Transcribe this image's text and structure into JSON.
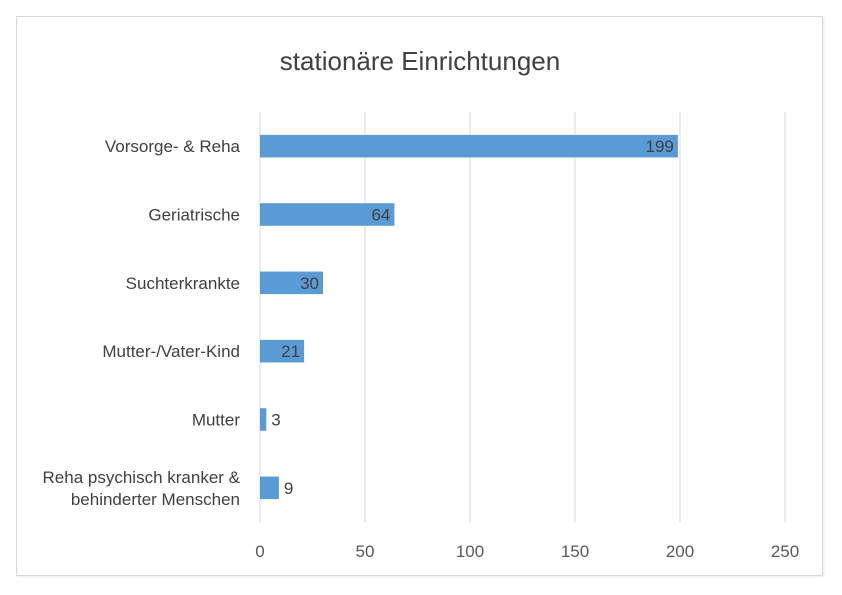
{
  "chart_data": {
    "type": "bar",
    "orientation": "horizontal",
    "title": "stationäre Einrichtungen",
    "categories": [
      [
        "Vorsorge- & Reha"
      ],
      [
        "Geriatrische"
      ],
      [
        "Suchterkrankte"
      ],
      [
        "Mutter-/Vater-Kind"
      ],
      [
        "Mutter"
      ],
      [
        "Reha psychisch kranker &",
        "behinderter Menschen"
      ]
    ],
    "values": [
      199,
      64,
      30,
      21,
      3,
      9
    ],
    "data_labels": [
      "199",
      "64",
      "30",
      "21",
      "3",
      "9"
    ],
    "xlim": [
      0,
      250
    ],
    "x_ticks": [
      "0",
      "50",
      "100",
      "150",
      "200",
      "250"
    ],
    "xlabel": "",
    "ylabel": "",
    "grid": true,
    "legend": "none",
    "bar_color": "#5b9bd5",
    "grid_color": "#d9d9d9"
  }
}
